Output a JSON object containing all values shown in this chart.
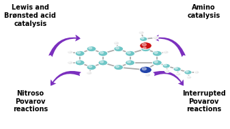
{
  "bg_color": "#ffffff",
  "arrow_color": "#7B2FBE",
  "labels": {
    "top_left": "Lewis and\nBrønsted acid\ncatalysis",
    "top_right": "Amino\ncatalysis",
    "bottom_left": "Nitroso\nPovarov\nreactions",
    "bottom_right": "Interrupted\nPovarov\nreactions"
  },
  "font_size": 7.0,
  "font_weight": "bold",
  "teal_color": "#6EC6C6",
  "white_color": "#E8E8E8",
  "red_color": "#CC1111",
  "blue_color": "#2244AA",
  "gray_bond": "#AAAAAA"
}
